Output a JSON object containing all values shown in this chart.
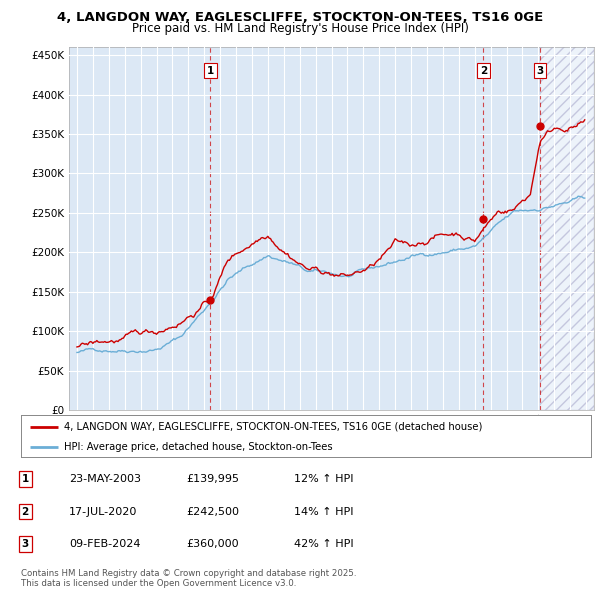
{
  "title1": "4, LANGDON WAY, EAGLESCLIFFE, STOCKTON-ON-TEES, TS16 0GE",
  "title2": "Price paid vs. HM Land Registry's House Price Index (HPI)",
  "legend_line1": "4, LANGDON WAY, EAGLESCLIFFE, STOCKTON-ON-TEES, TS16 0GE (detached house)",
  "legend_line2": "HPI: Average price, detached house, Stockton-on-Tees",
  "table": [
    {
      "num": "1",
      "date": "23-MAY-2003",
      "price": "£139,995",
      "change": "12% ↑ HPI"
    },
    {
      "num": "2",
      "date": "17-JUL-2020",
      "price": "£242,500",
      "change": "14% ↑ HPI"
    },
    {
      "num": "3",
      "date": "09-FEB-2024",
      "price": "£360,000",
      "change": "42% ↑ HPI"
    }
  ],
  "footer": "Contains HM Land Registry data © Crown copyright and database right 2025.\nThis data is licensed under the Open Government Licence v3.0.",
  "sale_dates": [
    2003.39,
    2020.54,
    2024.11
  ],
  "sale_prices": [
    139995,
    242500,
    360000
  ],
  "hpi_color": "#6baed6",
  "price_color": "#cc0000",
  "background_plot": "#dce8f5",
  "grid_color": "#ffffff",
  "ylim": [
    0,
    460000
  ],
  "yticks": [
    0,
    50000,
    100000,
    150000,
    200000,
    250000,
    300000,
    350000,
    400000,
    450000
  ],
  "xlim": [
    1994.5,
    2027.5
  ],
  "hatch_start": 2024.11,
  "xticks": [
    1995,
    1996,
    1997,
    1998,
    1999,
    2000,
    2001,
    2002,
    2003,
    2004,
    2005,
    2006,
    2007,
    2008,
    2009,
    2010,
    2011,
    2012,
    2013,
    2014,
    2015,
    2016,
    2017,
    2018,
    2019,
    2020,
    2021,
    2022,
    2023,
    2024,
    2025,
    2026,
    2027
  ]
}
